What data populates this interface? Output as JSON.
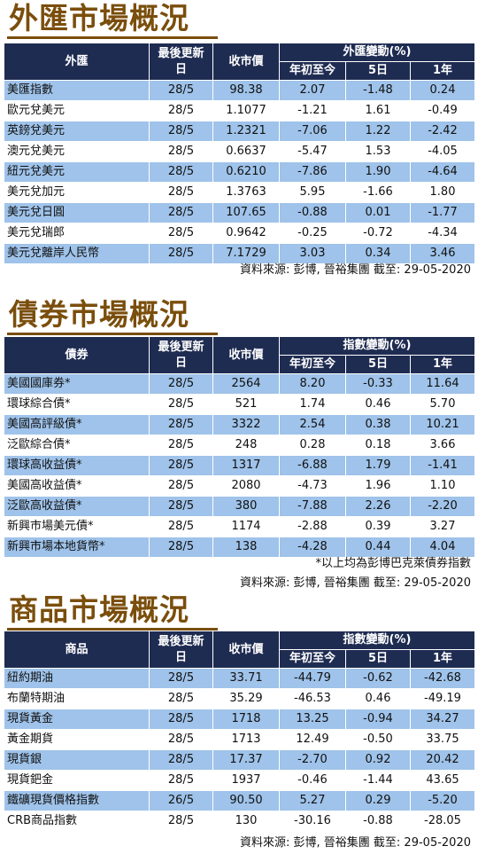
{
  "fx": {
    "title": "外匯市場概況",
    "headers": {
      "name": "外匯",
      "date": "最後更新日",
      "close": "收市價",
      "change_group": "外匯變動(%)",
      "ytd": "年初至今",
      "d5": "5日",
      "y1": "1年"
    },
    "rows": [
      {
        "name": "美匯指數",
        "date": "28/5",
        "close": "98.38",
        "ytd": "2.07",
        "d5": "-1.48",
        "y1": "0.24"
      },
      {
        "name": "歐元兌美元",
        "date": "28/5",
        "close": "1.1077",
        "ytd": "-1.21",
        "d5": "1.61",
        "y1": "-0.49"
      },
      {
        "name": "英鎊兌美元",
        "date": "28/5",
        "close": "1.2321",
        "ytd": "-7.06",
        "d5": "1.22",
        "y1": "-2.42"
      },
      {
        "name": "澳元兌美元",
        "date": "28/5",
        "close": "0.6637",
        "ytd": "-5.47",
        "d5": "1.53",
        "y1": "-4.05"
      },
      {
        "name": "紐元兌美元",
        "date": "28/5",
        "close": "0.6210",
        "ytd": "-7.86",
        "d5": "1.90",
        "y1": "-4.64"
      },
      {
        "name": "美元兌加元",
        "date": "28/5",
        "close": "1.3763",
        "ytd": "5.95",
        "d5": "-1.66",
        "y1": "1.80"
      },
      {
        "name": "美元兌日圓",
        "date": "28/5",
        "close": "107.65",
        "ytd": "-0.88",
        "d5": "0.01",
        "y1": "-1.77"
      },
      {
        "name": "美元兌瑞郎",
        "date": "28/5",
        "close": "0.9642",
        "ytd": "-0.25",
        "d5": "-0.72",
        "y1": "-4.34"
      },
      {
        "name": "美元兌離岸人民幣",
        "date": "28/5",
        "close": "7.1729",
        "ytd": "3.03",
        "d5": "0.34",
        "y1": "3.46"
      }
    ],
    "source": "資料來源: 彭博, 晉裕集團 截至: 29-05-2020"
  },
  "bonds": {
    "title": "債券市場概況",
    "headers": {
      "name": "債券",
      "date": "最後更新日",
      "close": "收市價",
      "change_group": "指數變動(%)",
      "ytd": "年初至今",
      "d5": "5日",
      "y1": "1年"
    },
    "rows": [
      {
        "name": "美國國庫券*",
        "date": "28/5",
        "close": "2564",
        "ytd": "8.20",
        "d5": "-0.33",
        "y1": "11.64"
      },
      {
        "name": "環球綜合債*",
        "date": "28/5",
        "close": "521",
        "ytd": "1.74",
        "d5": "0.46",
        "y1": "5.70"
      },
      {
        "name": "美國高評級債*",
        "date": "28/5",
        "close": "3322",
        "ytd": "2.54",
        "d5": "0.38",
        "y1": "10.21"
      },
      {
        "name": "泛歐綜合債*",
        "date": "28/5",
        "close": "248",
        "ytd": "0.28",
        "d5": "0.18",
        "y1": "3.66"
      },
      {
        "name": "環球高收益債*",
        "date": "28/5",
        "close": "1317",
        "ytd": "-6.88",
        "d5": "1.79",
        "y1": "-1.41"
      },
      {
        "name": "美國高收益債*",
        "date": "28/5",
        "close": "2080",
        "ytd": "-4.73",
        "d5": "1.96",
        "y1": "1.10"
      },
      {
        "name": "泛歐高收益債*",
        "date": "28/5",
        "close": "380",
        "ytd": "-7.88",
        "d5": "2.26",
        "y1": "-2.20"
      },
      {
        "name": "新興市場美元債*",
        "date": "28/5",
        "close": "1174",
        "ytd": "-2.88",
        "d5": "0.39",
        "y1": "3.27"
      },
      {
        "name": "新興市場本地貨幣*",
        "date": "28/5",
        "close": "138",
        "ytd": "-4.28",
        "d5": "0.44",
        "y1": "4.04"
      }
    ],
    "footnote": "*以上均為彭博巴克萊債券指數",
    "source": "資料來源: 彭博, 晉裕集團 截至: 29-05-2020"
  },
  "commodities": {
    "title": "商品市場概況",
    "headers": {
      "name": "商品",
      "date": "最後更新日",
      "close": "收市價",
      "change_group": "指數變動(%)",
      "ytd": "年初至今",
      "d5": "5日",
      "y1": "1年"
    },
    "rows": [
      {
        "name": "紐約期油",
        "date": "28/5",
        "close": "33.71",
        "ytd": "-44.79",
        "d5": "-0.62",
        "y1": "-42.68"
      },
      {
        "name": "布蘭特期油",
        "date": "28/5",
        "close": "35.29",
        "ytd": "-46.53",
        "d5": "0.46",
        "y1": "-49.19"
      },
      {
        "name": "現貨黃金",
        "date": "28/5",
        "close": "1718",
        "ytd": "13.25",
        "d5": "-0.94",
        "y1": "34.27"
      },
      {
        "name": "黃金期貨",
        "date": "28/5",
        "close": "1713",
        "ytd": "12.49",
        "d5": "-0.50",
        "y1": "33.75"
      },
      {
        "name": "現貨銀",
        "date": "28/5",
        "close": "17.37",
        "ytd": "-2.70",
        "d5": "0.92",
        "y1": "20.42"
      },
      {
        "name": "現貨鈀金",
        "date": "28/5",
        "close": "1937",
        "ytd": "-0.46",
        "d5": "-1.44",
        "y1": "43.65"
      },
      {
        "name": "鐵礦現貨價格指數",
        "date": "26/5",
        "close": "90.50",
        "ytd": "5.27",
        "d5": "0.29",
        "y1": "-5.20"
      },
      {
        "name": "CRB商品指數",
        "date": "28/5",
        "close": "130",
        "ytd": "-30.16",
        "d5": "-0.88",
        "y1": "-28.05"
      }
    ],
    "source": "資料來源: 彭博, 晉裕集團 截至: 29-05-2020"
  }
}
